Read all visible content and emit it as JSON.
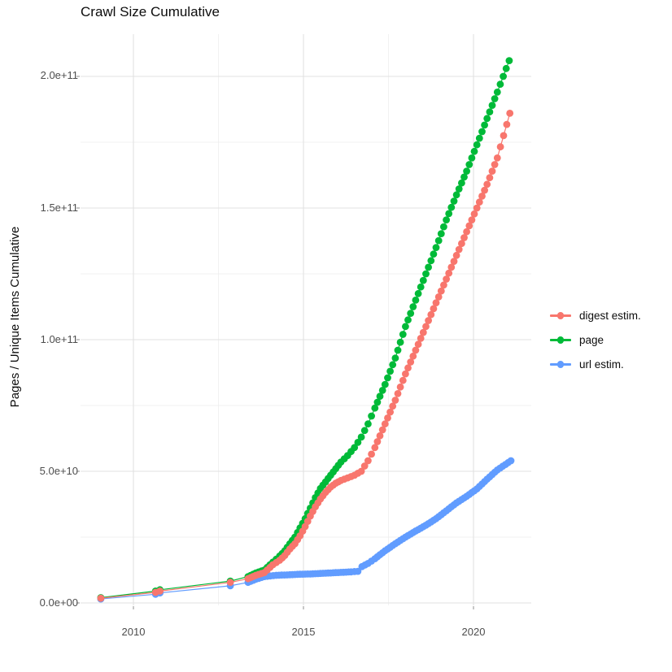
{
  "title": "Crawl Size Cumulative",
  "axes": {
    "y_title": "Pages / Unique Items Cumulative",
    "y_ticks": [
      "0.0e+00",
      "5.0e+10",
      "1.0e+11",
      "1.5e+11",
      "2.0e+11"
    ],
    "x_ticks": [
      "2010",
      "2015",
      "2020"
    ]
  },
  "legend": {
    "items": [
      {
        "label": "digest estim.",
        "color": "#F8766D"
      },
      {
        "label": "page",
        "color": "#00BA38"
      },
      {
        "label": "url estim.",
        "color": "#619CFF"
      }
    ]
  },
  "colors": {
    "background": "#FFFFFF",
    "grid_major": "#E2E2E2",
    "grid_minor": "#F0F0F0",
    "tick_text": "#4D4D4D",
    "text": "#0D0D0D",
    "series_digest": "#F8766D",
    "series_page": "#00BA38",
    "series_url": "#619CFF"
  },
  "chart_data": {
    "type": "scatter",
    "title": "Crawl Size Cumulative",
    "xlabel": "",
    "ylabel": "Pages / Unique Items Cumulative",
    "x_unit": "year",
    "xlim": [
      2008.4,
      2021.7
    ],
    "ylim": [
      0,
      216000000000.0
    ],
    "grid": true,
    "legend_position": "right",
    "x_major_ticks": [
      2010,
      2015,
      2020
    ],
    "x_minor_gridlines": [
      2012.5,
      2017.5
    ],
    "y_major_ticks": [
      0,
      50000000000.0,
      100000000000.0,
      150000000000.0,
      200000000000.0
    ],
    "y_minor_gridlines": [
      25000000000.0,
      75000000000.0,
      125000000000.0,
      175000000000.0
    ],
    "point_style": "dot-chain, roughly monthly crawl points from 2014 onward, sparse before",
    "series": [
      {
        "name": "digest estim.",
        "color": "#F8766D",
        "points": [
          [
            2009.04,
            1800000000.0
          ],
          [
            2010.65,
            4000000000.0
          ],
          [
            2010.78,
            4500000000.0
          ],
          [
            2012.85,
            7800000000.0
          ],
          [
            2013.37,
            9200000000.0
          ],
          [
            2013.6,
            10500000000.0
          ],
          [
            2013.85,
            11500000000.0
          ],
          [
            2014.1,
            14500000000.0
          ],
          [
            2014.3,
            16200000000.0
          ],
          [
            2014.45,
            18000000000.0
          ],
          [
            2014.6,
            20500000000.0
          ],
          [
            2014.75,
            22500000000.0
          ],
          [
            2014.9,
            25500000000.0
          ],
          [
            2015.05,
            29000000000.0
          ],
          [
            2015.2,
            33000000000.0
          ],
          [
            2015.35,
            36500000000.0
          ],
          [
            2015.5,
            39500000000.0
          ],
          [
            2015.65,
            42000000000.0
          ],
          [
            2015.8,
            44000000000.0
          ],
          [
            2015.95,
            45500000000.0
          ],
          [
            2016.1,
            46500000000.0
          ],
          [
            2016.3,
            47500000000.0
          ],
          [
            2016.5,
            48500000000.0
          ],
          [
            2016.7,
            50000000000.0
          ],
          [
            2016.9,
            54000000000.0
          ],
          [
            2017.1,
            59000000000.0
          ],
          [
            2017.4,
            68000000000.0
          ],
          [
            2017.7,
            77000000000.0
          ],
          [
            2018.0,
            87000000000.0
          ],
          [
            2018.3,
            96000000000.0
          ],
          [
            2018.6,
            105000000000.0
          ],
          [
            2018.9,
            114000000000.0
          ],
          [
            2019.2,
            123000000000.0
          ],
          [
            2019.5,
            132000000000.0
          ],
          [
            2019.8,
            141000000000.0
          ],
          [
            2020.1,
            150000000000.0
          ],
          [
            2020.4,
            159000000000.0
          ],
          [
            2020.7,
            169000000000.0
          ],
          [
            2021.07,
            186000000000.0
          ]
        ]
      },
      {
        "name": "page",
        "color": "#00BA38",
        "points": [
          [
            2009.04,
            2000000000.0
          ],
          [
            2010.65,
            4500000000.0
          ],
          [
            2010.78,
            5000000000.0
          ],
          [
            2012.85,
            8300000000.0
          ],
          [
            2013.37,
            10000000000.0
          ],
          [
            2013.6,
            11400000000.0
          ],
          [
            2013.85,
            12500000000.0
          ],
          [
            2014.1,
            15500000000.0
          ],
          [
            2014.3,
            17800000000.0
          ],
          [
            2014.45,
            19800000000.0
          ],
          [
            2014.6,
            22500000000.0
          ],
          [
            2014.75,
            25000000000.0
          ],
          [
            2014.9,
            28500000000.0
          ],
          [
            2015.05,
            32000000000.0
          ],
          [
            2015.2,
            36000000000.0
          ],
          [
            2015.35,
            40000000000.0
          ],
          [
            2015.5,
            43500000000.0
          ],
          [
            2015.65,
            46000000000.0
          ],
          [
            2015.8,
            48500000000.0
          ],
          [
            2015.95,
            51000000000.0
          ],
          [
            2016.1,
            53500000000.0
          ],
          [
            2016.3,
            56000000000.0
          ],
          [
            2016.5,
            59000000000.0
          ],
          [
            2016.7,
            63000000000.0
          ],
          [
            2016.9,
            68000000000.0
          ],
          [
            2017.1,
            74000000000.0
          ],
          [
            2017.4,
            83000000000.0
          ],
          [
            2017.7,
            93000000000.0
          ],
          [
            2018.0,
            105000000000.0
          ],
          [
            2018.3,
            115000000000.0
          ],
          [
            2018.6,
            125000000000.0
          ],
          [
            2018.9,
            135000000000.0
          ],
          [
            2019.2,
            145500000000.0
          ],
          [
            2019.5,
            155000000000.0
          ],
          [
            2019.8,
            164000000000.0
          ],
          [
            2020.1,
            174000000000.0
          ],
          [
            2020.4,
            184000000000.0
          ],
          [
            2020.7,
            194000000000.0
          ],
          [
            2021.05,
            206000000000.0
          ]
        ]
      },
      {
        "name": "url estim.",
        "color": "#619CFF",
        "points": [
          [
            2009.04,
            1500000000.0
          ],
          [
            2010.65,
            3300000000.0
          ],
          [
            2010.78,
            3800000000.0
          ],
          [
            2012.85,
            6500000000.0
          ],
          [
            2013.37,
            7800000000.0
          ],
          [
            2013.6,
            9000000000.0
          ],
          [
            2013.85,
            10000000000.0
          ],
          [
            2014.2,
            10500000000.0
          ],
          [
            2014.6,
            10700000000.0
          ],
          [
            2014.9,
            10900000000.0
          ],
          [
            2015.2,
            11000000000.0
          ],
          [
            2015.5,
            11200000000.0
          ],
          [
            2015.8,
            11400000000.0
          ],
          [
            2016.1,
            11600000000.0
          ],
          [
            2016.4,
            11800000000.0
          ],
          [
            2016.6,
            12000000000.0
          ],
          [
            2016.72,
            13800000000.0
          ],
          [
            2016.9,
            15000000000.0
          ],
          [
            2017.1,
            16800000000.0
          ],
          [
            2017.4,
            19800000000.0
          ],
          [
            2017.7,
            22500000000.0
          ],
          [
            2018.0,
            25000000000.0
          ],
          [
            2018.3,
            27300000000.0
          ],
          [
            2018.6,
            29500000000.0
          ],
          [
            2018.9,
            32000000000.0
          ],
          [
            2019.2,
            35000000000.0
          ],
          [
            2019.5,
            38000000000.0
          ],
          [
            2019.8,
            40500000000.0
          ],
          [
            2020.1,
            43300000000.0
          ],
          [
            2020.4,
            47000000000.0
          ],
          [
            2020.7,
            50500000000.0
          ],
          [
            2021.1,
            54000000000.0
          ]
        ]
      }
    ]
  }
}
